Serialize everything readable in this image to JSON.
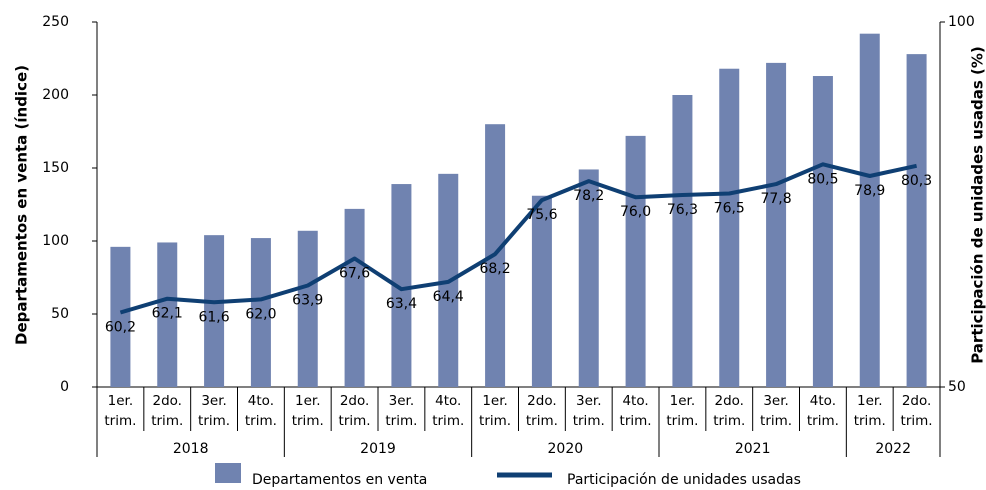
{
  "chart_data": {
    "type": "bar-line",
    "category_groups": [
      {
        "name": "2018",
        "categories": [
          "1er. trim.",
          "2do. trim.",
          "3er. trim.",
          "4to. trim."
        ]
      },
      {
        "name": "2019",
        "categories": [
          "1er. trim.",
          "2do. trim.",
          "3er. trim.",
          "4to. trim."
        ]
      },
      {
        "name": "2020",
        "categories": [
          "1er. trim.",
          "2do. trim.",
          "3er. trim.",
          "4to. trim."
        ]
      },
      {
        "name": "2021",
        "categories": [
          "1er. trim.",
          "2do. trim.",
          "3er. trim.",
          "4to. trim."
        ]
      },
      {
        "name": "2022",
        "categories": [
          "1er. trim.",
          "2do. trim."
        ]
      }
    ],
    "y_label": "Departamentos en venta (índice)",
    "y2_label": "Participación de unidades usadas (%)",
    "ylim": [
      0,
      250
    ],
    "yticks": [
      0,
      50,
      100,
      150,
      200,
      250
    ],
    "y2lim": [
      50,
      100
    ],
    "y2ticks": [
      50,
      100
    ],
    "series": [
      {
        "name": "Departamentos en venta",
        "type": "bar",
        "color": "#7083b0",
        "values": [
          96,
          99,
          104,
          102,
          107,
          122,
          139,
          146,
          180,
          131,
          149,
          172,
          200,
          218,
          222,
          213,
          242,
          228
        ]
      },
      {
        "name": "Participación de unidades usadas",
        "type": "line",
        "axis": "y2",
        "color": "#0f3f73",
        "values": [
          60.2,
          62.1,
          61.6,
          62.0,
          63.9,
          67.6,
          63.4,
          64.4,
          68.2,
          75.6,
          78.2,
          76.0,
          76.3,
          76.5,
          77.8,
          80.5,
          78.9,
          80.3
        ],
        "value_labels": [
          "60,2",
          "62,1",
          "61,6",
          "62,0",
          "63,9",
          "67,6",
          "63,4",
          "64,4",
          "68,2",
          "75,6",
          "78,2",
          "76,0",
          "76,3",
          "76,5",
          "77,8",
          "80,5",
          "78,9",
          "80,3"
        ]
      }
    ]
  }
}
